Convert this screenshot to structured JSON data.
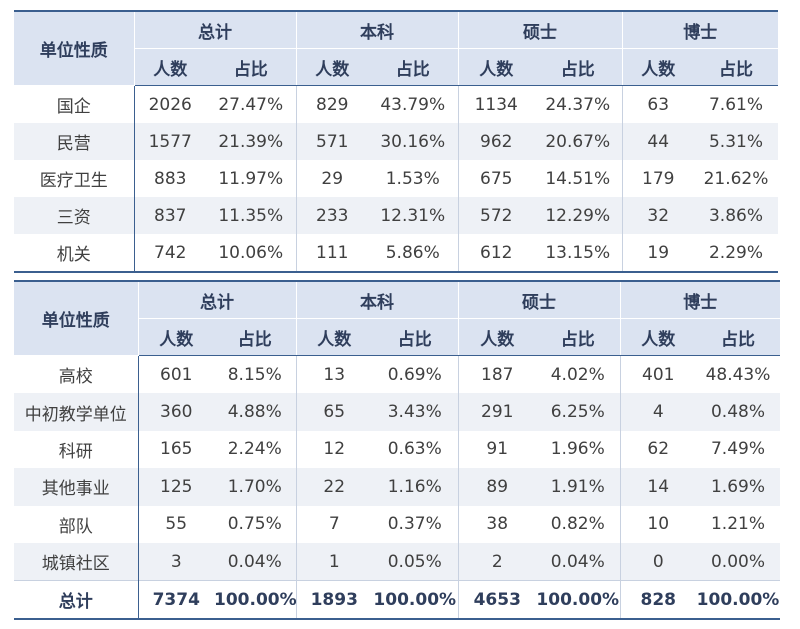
{
  "headers": {
    "unit": "单位性质",
    "groups": [
      "总计",
      "本科",
      "硕士",
      "博士"
    ],
    "count": "人数",
    "share": "占比"
  },
  "table1": {
    "rows": [
      {
        "unit": "国企",
        "cells": [
          "2026",
          "27.47%",
          "829",
          "43.79%",
          "1134",
          "24.37%",
          "63",
          "7.61%"
        ]
      },
      {
        "unit": "民营",
        "cells": [
          "1577",
          "21.39%",
          "571",
          "30.16%",
          "962",
          "20.67%",
          "44",
          "5.31%"
        ]
      },
      {
        "unit": "医疗卫生",
        "cells": [
          "883",
          "11.97%",
          "29",
          "1.53%",
          "675",
          "14.51%",
          "179",
          "21.62%"
        ]
      },
      {
        "unit": "三资",
        "cells": [
          "837",
          "11.35%",
          "233",
          "12.31%",
          "572",
          "12.29%",
          "32",
          "3.86%"
        ]
      },
      {
        "unit": "机关",
        "cells": [
          "742",
          "10.06%",
          "111",
          "5.86%",
          "612",
          "13.15%",
          "19",
          "2.29%"
        ]
      }
    ]
  },
  "table2": {
    "rows": [
      {
        "unit": "高校",
        "cells": [
          "601",
          "8.15%",
          "13",
          "0.69%",
          "187",
          "4.02%",
          "401",
          "48.43%"
        ]
      },
      {
        "unit": "中初教学单位",
        "cells": [
          "360",
          "4.88%",
          "65",
          "3.43%",
          "291",
          "6.25%",
          "4",
          "0.48%"
        ]
      },
      {
        "unit": "科研",
        "cells": [
          "165",
          "2.24%",
          "12",
          "0.63%",
          "91",
          "1.96%",
          "62",
          "7.49%"
        ]
      },
      {
        "unit": "其他事业",
        "cells": [
          "125",
          "1.70%",
          "22",
          "1.16%",
          "89",
          "1.91%",
          "14",
          "1.69%"
        ]
      },
      {
        "unit": "部队",
        "cells": [
          "55",
          "0.75%",
          "7",
          "0.37%",
          "38",
          "0.82%",
          "10",
          "1.21%"
        ]
      },
      {
        "unit": "城镇社区",
        "cells": [
          "3",
          "0.04%",
          "1",
          "0.05%",
          "2",
          "0.04%",
          "0",
          "0.00%"
        ]
      }
    ],
    "total": {
      "unit": "总计",
      "cells": [
        "7374",
        "100.00%",
        "1893",
        "100.00%",
        "4653",
        "100.00%",
        "828",
        "100.00%"
      ]
    }
  },
  "colors": {
    "header_bg": "#dbe3f1",
    "rule": "#3b5f8f",
    "alt_row": "#eef1f6"
  }
}
